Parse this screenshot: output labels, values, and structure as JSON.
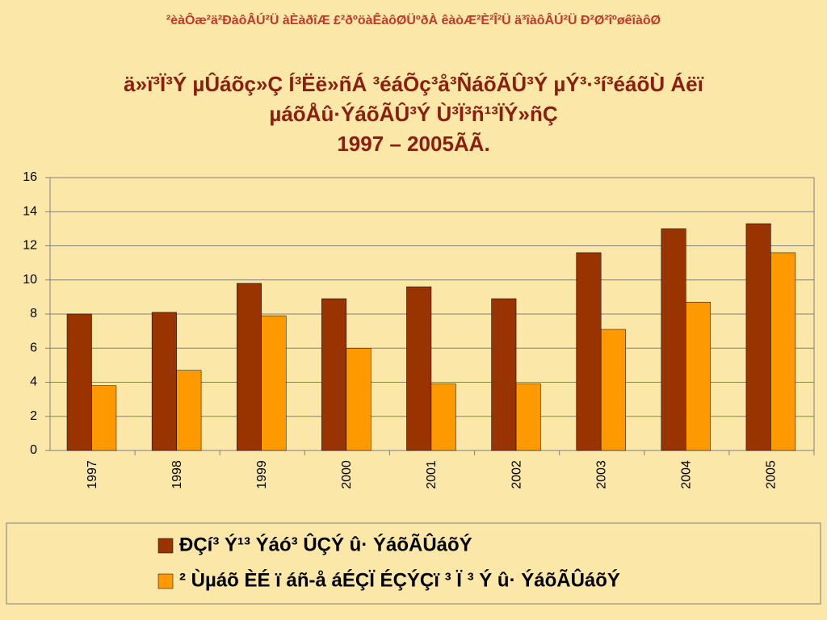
{
  "slide_header": "²èàÔæ²ä²ÐàôÂÚ²Ü  àÈàðîÆ  £²ðºöàÊàôØÜºðÀ  êàòÆ²È²Î²Ü  ä³îàôÂÚ²Ü   Ð²Ø²îºøêîàôØ",
  "chart_data": {
    "type": "bar",
    "title_lines": [
      "ä»ï³Ï³Ý µÛáõç»Ç  Í³Ëë»ñÁ ³éáÕç³å³ÑáõÃÛ³Ý µÝ³·³í³éáõÙ Áëï",
      "µáõÅû·ÝáõÃÛ³Ý Ù³Ï³ñ¹³ÏÝ»ñÇ",
      "1997 – 2005ÃÃ."
    ],
    "categories": [
      "1997",
      "1998",
      "1999",
      "2000",
      "2001",
      "2002",
      "2003",
      "2004",
      "2005"
    ],
    "series": [
      {
        "name": "ÐÇí³  Ý¹³  Ýáó³  ÛÇÝ û·  ÝáõÃÛáõÝ",
        "color": "#993300",
        "values": [
          8,
          8.1,
          9.8,
          8.9,
          9.6,
          8.9,
          11.6,
          13,
          13.3
        ]
      },
      {
        "name": "²  Ùµáõ ÈÉ  ï  áñ-å áÉÇÏ ÉÇÝÇï ³  Ï ³  Ý û·  ÝáõÃÛáõÝ",
        "color": "#ff9900",
        "values": [
          3.8,
          4.7,
          7.9,
          6,
          3.9,
          3.9,
          7.1,
          8.7,
          11.6
        ]
      }
    ],
    "ylim": [
      0,
      16
    ],
    "yticks": [
      0,
      2,
      4,
      6,
      8,
      10,
      12,
      14,
      16
    ],
    "grid": true,
    "legend": "bottom"
  }
}
